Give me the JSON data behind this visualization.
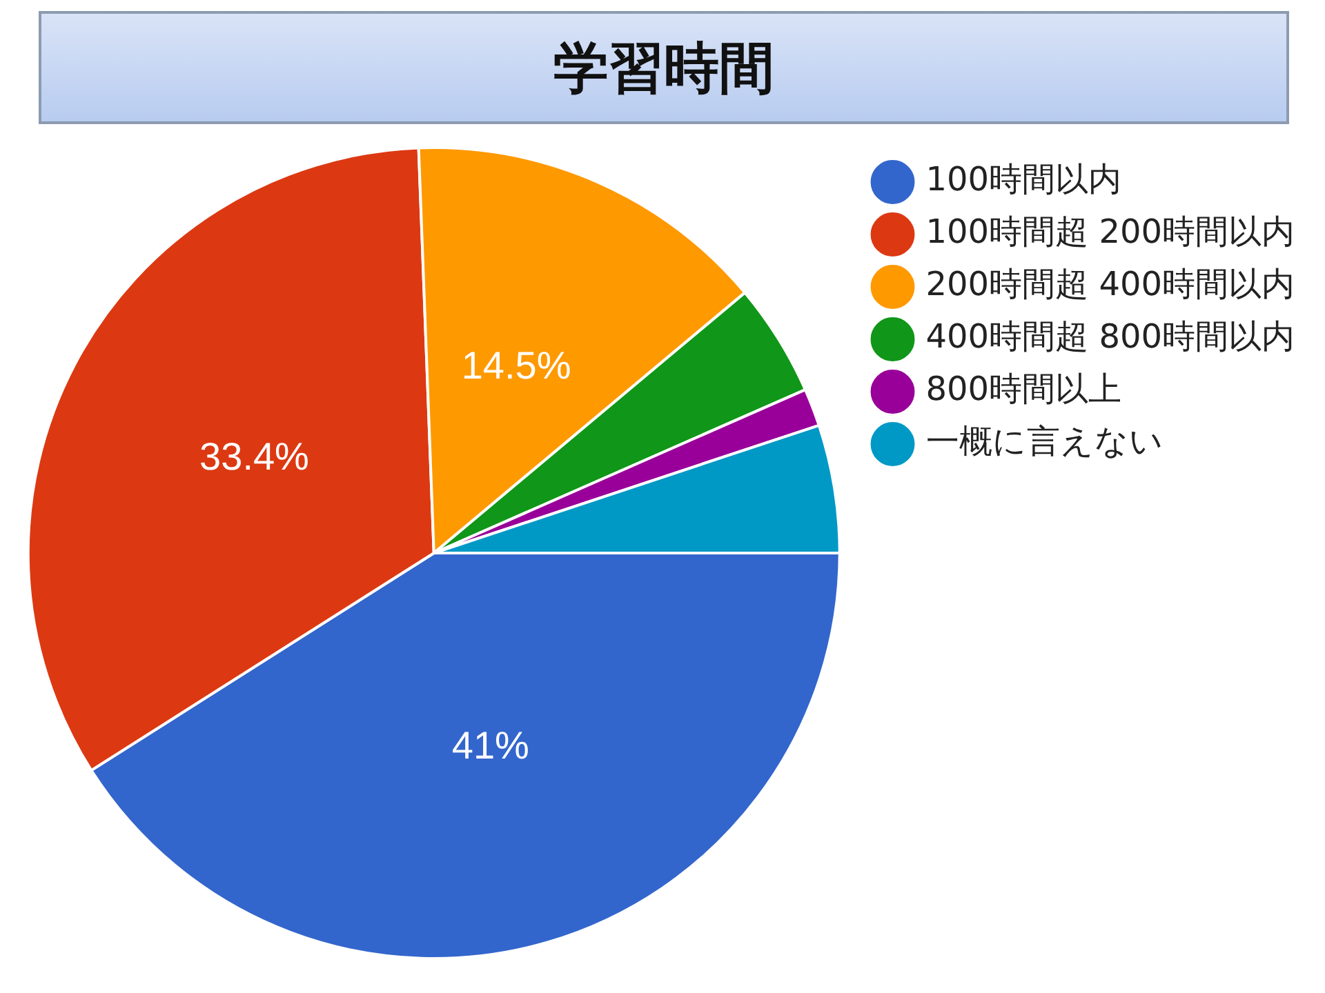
{
  "chart_data": {
    "type": "pie",
    "title": "学習時間",
    "categories": [
      "100時間以内",
      "100時間超 200時間以内",
      "200時間超 400時間以内",
      "400時間超 800時間以内",
      "800時間以上",
      "一概に言えない"
    ],
    "values": [
      41,
      33.4,
      14.5,
      4.5,
      1.5,
      5.1
    ],
    "colors": [
      "#3366cc",
      "#dc3912",
      "#ff9900",
      "#109618",
      "#990099",
      "#0099c6"
    ],
    "value_labels": [
      "41%",
      "33.4%",
      "14.5%",
      null,
      null,
      null
    ],
    "legend": "right"
  }
}
